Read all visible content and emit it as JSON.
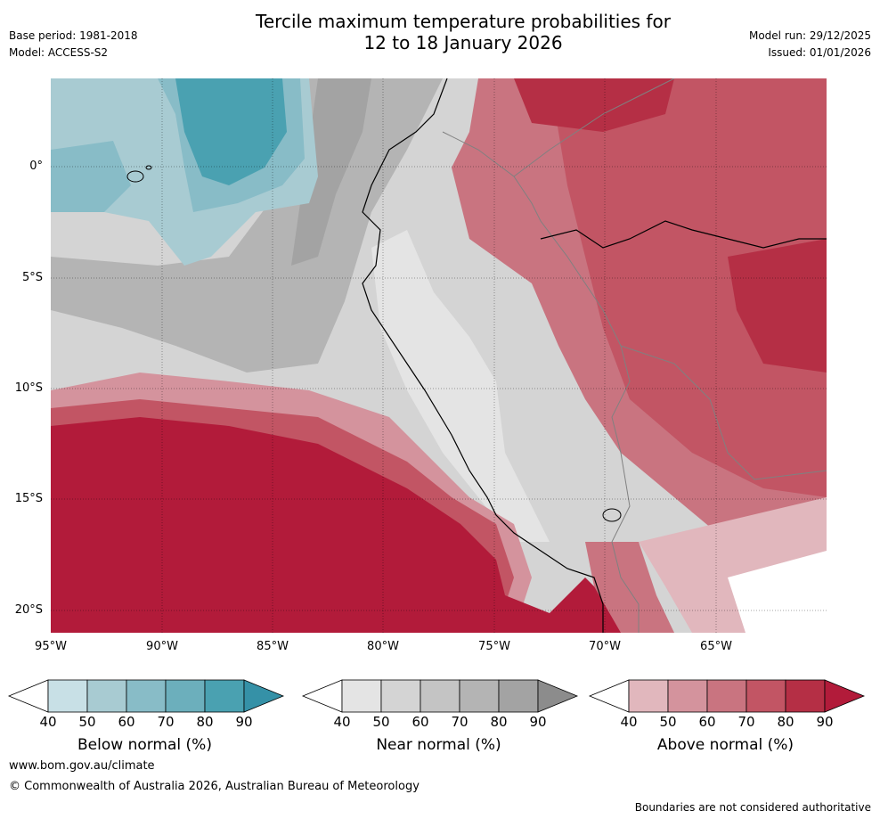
{
  "header": {
    "title_line1": "Tercile maximum temperature probabilities for",
    "title_line2": "12 to 18 January 2026",
    "base_period": "Base period: 1981-2018",
    "model": "Model: ACCESS-S2",
    "model_run": "Model run: 29/12/2025",
    "issued": "Issued: 01/01/2026"
  },
  "map": {
    "lat_labels": [
      "0°",
      "5°S",
      "10°S",
      "15°S",
      "20°S"
    ],
    "lon_labels": [
      "95°W",
      "90°W",
      "85°W",
      "80°W",
      "75°W",
      "70°W",
      "65°W"
    ]
  },
  "colorbars": [
    {
      "name": "below",
      "label": "Below normal (%)",
      "ticks": [
        "40",
        "50",
        "60",
        "70",
        "80",
        "90"
      ],
      "colors": [
        "#ffffff",
        "#c8e0e6",
        "#a8cbd2",
        "#88bcc7",
        "#6cafbc",
        "#4aa1b1",
        "#3591a7"
      ]
    },
    {
      "name": "near",
      "label": "Near normal (%)",
      "ticks": [
        "40",
        "50",
        "60",
        "70",
        "80",
        "90"
      ],
      "colors": [
        "#ffffff",
        "#e4e4e4",
        "#d4d4d4",
        "#c4c4c4",
        "#b4b4b4",
        "#a3a3a3",
        "#8c8c8c"
      ]
    },
    {
      "name": "above",
      "label": "Above normal (%)",
      "ticks": [
        "40",
        "50",
        "60",
        "70",
        "80",
        "90"
      ],
      "colors": [
        "#ffffff",
        "#e1b7bd",
        "#d4939d",
        "#c97480",
        "#c25564",
        "#b52f45",
        "#b21b3a"
      ]
    }
  ],
  "footer": {
    "url": "www.bom.gov.au/climate",
    "copyright": "© Commonwealth of Australia 2026, Australian Bureau of Meteorology",
    "disclaimer": "Boundaries are not considered authoritative"
  }
}
